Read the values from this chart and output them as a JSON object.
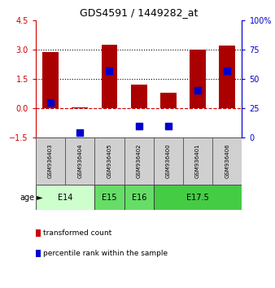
{
  "title": "GDS4591 / 1449282_at",
  "samples": [
    "GSM936403",
    "GSM936404",
    "GSM936405",
    "GSM936402",
    "GSM936400",
    "GSM936401",
    "GSM936406"
  ],
  "transformed_counts": [
    2.85,
    0.03,
    3.25,
    1.2,
    0.8,
    3.0,
    3.2
  ],
  "percentile_ranks": [
    30,
    4,
    57,
    10,
    10,
    40,
    57
  ],
  "ylim_left": [
    -1.5,
    4.5
  ],
  "ylim_right": [
    0,
    100
  ],
  "left_ticks": [
    -1.5,
    0.0,
    1.5,
    3.0,
    4.5
  ],
  "right_ticks": [
    0,
    25,
    50,
    75,
    100
  ],
  "groups": [
    {
      "label": "E14",
      "start": 0,
      "end": 2,
      "color": "#ccffcc"
    },
    {
      "label": "E15",
      "start": 2,
      "end": 3,
      "color": "#66dd66"
    },
    {
      "label": "E16",
      "start": 3,
      "end": 4,
      "color": "#66dd66"
    },
    {
      "label": "E17.5",
      "start": 4,
      "end": 7,
      "color": "#44cc44"
    }
  ],
  "bar_color": "#aa0000",
  "dot_color": "#0000cc",
  "bar_width": 0.55,
  "dot_size": 35,
  "legend_items": [
    {
      "color": "#cc0000",
      "label": "transformed count"
    },
    {
      "color": "#0000cc",
      "label": "percentile rank within the sample"
    }
  ],
  "age_label": "age",
  "left_axis_color": "#cc0000",
  "right_axis_color": "#0000cc",
  "sample_bg_color": "#d0d0d0",
  "plot_bg": "#ffffff"
}
